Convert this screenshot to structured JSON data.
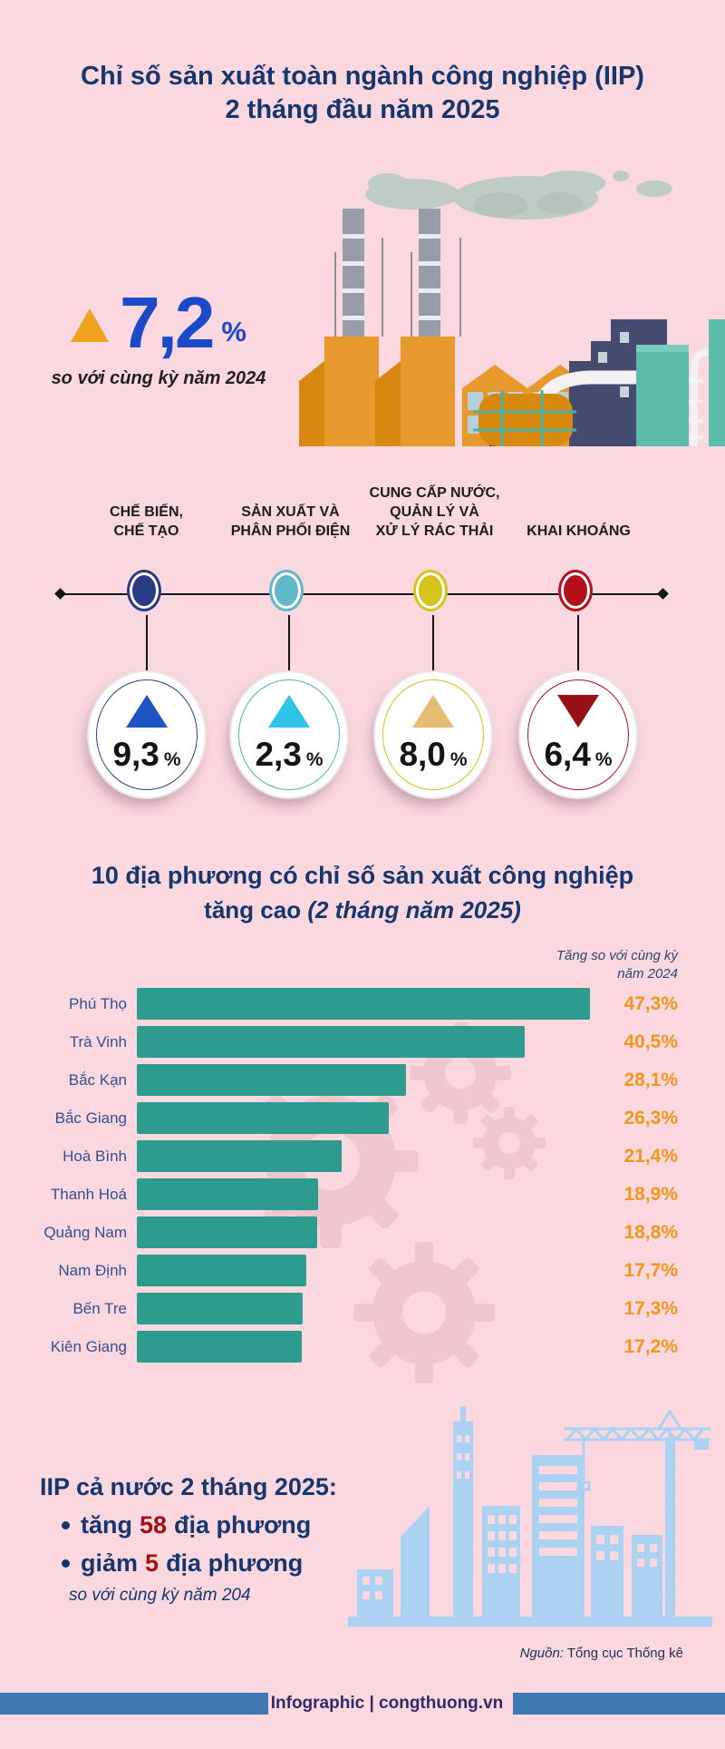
{
  "header": {
    "title_line1": "Chỉ số sản xuất toàn ngành công nghiệp (IIP)",
    "title_line2": "2 tháng đầu năm 2025"
  },
  "hero": {
    "value": "7,2",
    "unit": "%",
    "direction": "up",
    "note": "so với cùng kỳ năm 2024",
    "value_color": "#1c49c8",
    "triangle_color": "#efa21e"
  },
  "sectors": [
    {
      "label_lines": [
        "CHẾ BIẾN,",
        "CHẾ TẠO"
      ],
      "value": "9,3",
      "unit": "%",
      "direction": "up",
      "dot_color": "#2b3a85",
      "ring_color": "#2c3f8c",
      "arrow_color": "#1d53c2"
    },
    {
      "label_lines": [
        "SẢN XUẤT VÀ",
        "PHÂN PHỐI ĐIỆN"
      ],
      "value": "2,3",
      "unit": "%",
      "direction": "up",
      "dot_color": "#5fb7c9",
      "ring_color": "#4fb3c6",
      "arrow_color": "#2fc3e8"
    },
    {
      "label_lines": [
        "CUNG CẤP NƯỚC,",
        "QUẢN LÝ VÀ",
        "XỬ LÝ RÁC THẢI"
      ],
      "value": "8,0",
      "unit": "%",
      "direction": "up",
      "dot_color": "#d6c31c",
      "ring_color": "#d3c11a",
      "arrow_color": "#e5bd72"
    },
    {
      "label_lines": [
        "KHAI KHOÁNG"
      ],
      "value": "6,4",
      "unit": "%",
      "direction": "down",
      "dot_color": "#b5101b",
      "ring_color": "#a9111c",
      "arrow_color": "#991116"
    }
  ],
  "chart": {
    "title": "10 địa phương có chỉ số sản xuất công nghiệp",
    "subtitle_bold": "tăng cao",
    "subtitle_italic": " (2 tháng năm 2025)",
    "note_lines": [
      "Tăng so với cùng kỳ",
      "năm 2024"
    ]
  },
  "chart_data": {
    "type": "bar",
    "orientation": "horizontal",
    "title": "10 địa phương có chỉ số sản xuất công nghiệp tăng cao (2 tháng năm 2025)",
    "note": "Tăng so với cùng kỳ năm 2024",
    "categories": [
      "Phú Thọ",
      "Trà Vinh",
      "Bắc Kạn",
      "Bắc Giang",
      "Hoà Bình",
      "Thanh Hoá",
      "Quảng Nam",
      "Nam Định",
      "Bến Tre",
      "Kiên Giang"
    ],
    "values": [
      47.3,
      40.5,
      28.1,
      26.3,
      21.4,
      18.9,
      18.8,
      17.7,
      17.3,
      17.2
    ],
    "value_labels": [
      "47,3%",
      "40,5%",
      "28,1%",
      "26,3%",
      "21,4%",
      "18,9%",
      "18,8%",
      "17,7%",
      "17,3%",
      "17,2%"
    ],
    "xlim": [
      0,
      50
    ],
    "bar_color": "#2d9c8e",
    "label_color": "#31508f",
    "value_color": "#f2971b"
  },
  "summary": {
    "heading": "IIP cả nước 2 tháng 2025:",
    "bullets": [
      {
        "prefix": "tăng",
        "number": "58",
        "suffix": "địa phương"
      },
      {
        "prefix": "giảm",
        "number": "5",
        "suffix": "địa phương"
      }
    ],
    "note": "so với cùng kỳ năm 204"
  },
  "footer": {
    "source_prefix": "Nguồn:",
    "source_text": "Tổng cục Thống kê",
    "credit": "Infographic | congthuong.vn"
  },
  "colors": {
    "background": "#fbd8e0",
    "navy": "#16366e",
    "bright_blue": "#1c49c8",
    "orange_triangle": "#efa21e",
    "bar_teal": "#2d9c8e",
    "value_orange": "#f2971b",
    "dark_red": "#9e1212",
    "footer_bar_blue": "#3e79b4"
  }
}
